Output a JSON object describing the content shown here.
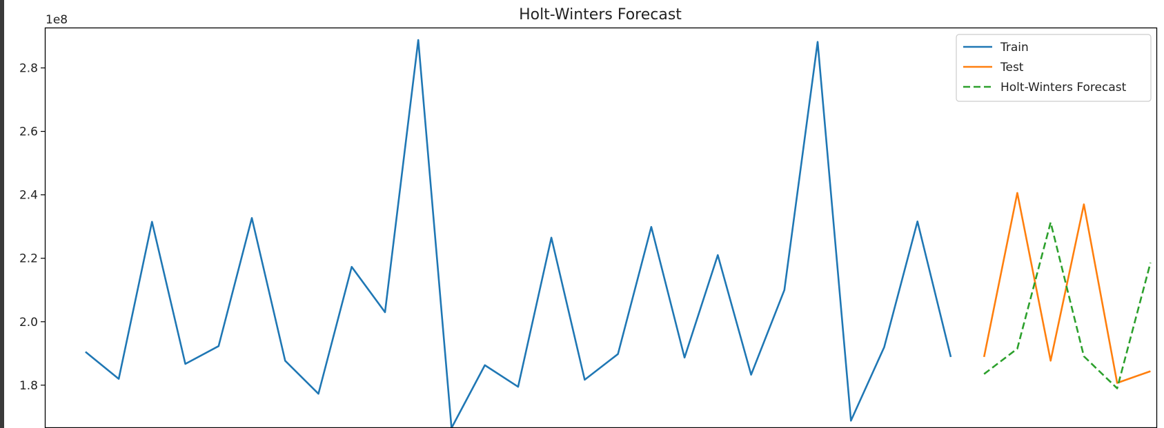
{
  "chart_data": {
    "type": "line",
    "title": "Holt-Winters Forecast",
    "xlabel": "",
    "ylabel": "",
    "y_offset_label": "1e8",
    "y_ticks": [
      1.8,
      2.0,
      2.2,
      2.4,
      2.6,
      2.8
    ],
    "y_tick_labels": [
      "1.8",
      "2.0",
      "2.2",
      "2.4",
      "2.6",
      "2.8"
    ],
    "ylim": [
      1.665,
      2.925
    ],
    "xlim": [
      -1.2,
      32.2
    ],
    "grid": false,
    "legend_position": "top-right",
    "series": [
      {
        "name": "Train",
        "color": "#1f77b4",
        "dash": "solid",
        "x": [
          0,
          1,
          2,
          3,
          4,
          5,
          6,
          7,
          8,
          9,
          10,
          11,
          12,
          13,
          14,
          15,
          16,
          17,
          18,
          19,
          20,
          21,
          22,
          23,
          24,
          25,
          26
        ],
        "values": [
          1.905,
          1.82,
          2.315,
          1.867,
          1.923,
          2.327,
          1.877,
          1.773,
          2.173,
          2.03,
          2.888,
          1.665,
          1.863,
          1.795,
          2.265,
          1.817,
          1.898,
          2.299,
          1.887,
          2.21,
          1.833,
          2.1,
          2.882,
          1.688,
          1.92,
          2.316,
          1.889
        ]
      },
      {
        "name": "Test",
        "color": "#ff7f0e",
        "dash": "solid",
        "x": [
          27,
          28,
          29,
          30,
          31,
          32
        ],
        "values": [
          1.889,
          2.406,
          1.877,
          2.37,
          1.807,
          1.844
        ]
      },
      {
        "name": "Holt-Winters Forecast",
        "color": "#2ca02c",
        "dash": "dashed",
        "x": [
          27,
          28,
          29,
          30,
          31,
          32
        ],
        "values": [
          1.835,
          1.915,
          2.313,
          1.891,
          1.79,
          2.186
        ]
      }
    ]
  }
}
